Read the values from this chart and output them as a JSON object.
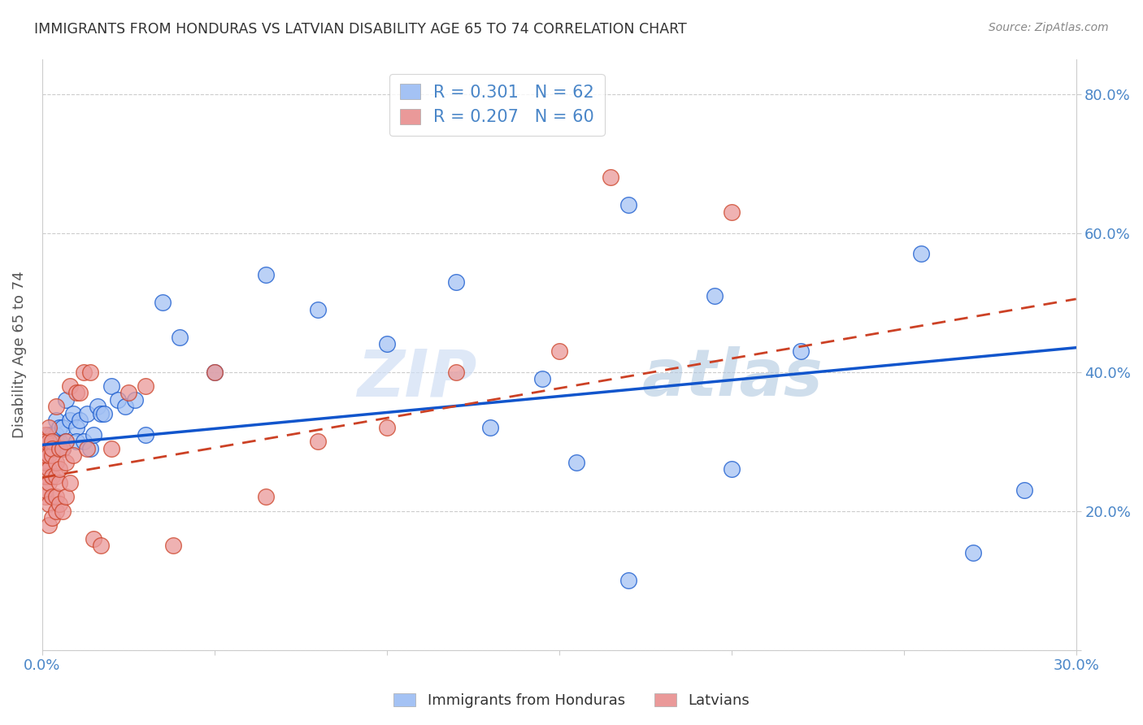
{
  "title": "IMMIGRANTS FROM HONDURAS VS LATVIAN DISABILITY AGE 65 TO 74 CORRELATION CHART",
  "source": "Source: ZipAtlas.com",
  "ylabel": "Disability Age 65 to 74",
  "xlim": [
    0.0,
    0.3
  ],
  "ylim": [
    0.0,
    0.85
  ],
  "xticks": [
    0.0,
    0.05,
    0.1,
    0.15,
    0.2,
    0.25,
    0.3
  ],
  "xtick_labels": [
    "0.0%",
    "",
    "",
    "",
    "",
    "",
    "30.0%"
  ],
  "yticks": [
    0.0,
    0.2,
    0.4,
    0.6,
    0.8
  ],
  "ytick_labels_right": [
    "",
    "20.0%",
    "40.0%",
    "60.0%",
    "80.0%"
  ],
  "legend_label1": "Immigrants from Honduras",
  "legend_label2": "Latvians",
  "r1": 0.301,
  "n1": 62,
  "r2": 0.207,
  "n2": 60,
  "color1": "#a4c2f4",
  "color2": "#ea9999",
  "line_color1": "#1155cc",
  "line_color2": "#cc4125",
  "background_color": "#ffffff",
  "watermark_zip": "ZIP",
  "watermark_atlas": "atlas",
  "scatter1_x": [
    0.0,
    0.001,
    0.001,
    0.001,
    0.001,
    0.001,
    0.001,
    0.002,
    0.002,
    0.002,
    0.002,
    0.002,
    0.002,
    0.003,
    0.003,
    0.003,
    0.003,
    0.004,
    0.004,
    0.004,
    0.005,
    0.005,
    0.005,
    0.006,
    0.006,
    0.007,
    0.007,
    0.008,
    0.009,
    0.01,
    0.01,
    0.011,
    0.012,
    0.013,
    0.014,
    0.015,
    0.016,
    0.017,
    0.018,
    0.02,
    0.022,
    0.024,
    0.027,
    0.03,
    0.035,
    0.04,
    0.05,
    0.065,
    0.08,
    0.1,
    0.12,
    0.145,
    0.17,
    0.195,
    0.13,
    0.155,
    0.255,
    0.27,
    0.285,
    0.2,
    0.22,
    0.17
  ],
  "scatter1_y": [
    0.3,
    0.3,
    0.3,
    0.3,
    0.3,
    0.3,
    0.3,
    0.3,
    0.3,
    0.3,
    0.3,
    0.3,
    0.31,
    0.3,
    0.3,
    0.31,
    0.3,
    0.3,
    0.31,
    0.33,
    0.29,
    0.3,
    0.32,
    0.29,
    0.32,
    0.36,
    0.3,
    0.33,
    0.34,
    0.32,
    0.3,
    0.33,
    0.3,
    0.34,
    0.29,
    0.31,
    0.35,
    0.34,
    0.34,
    0.38,
    0.36,
    0.35,
    0.36,
    0.31,
    0.5,
    0.45,
    0.4,
    0.54,
    0.49,
    0.44,
    0.53,
    0.39,
    0.64,
    0.51,
    0.32,
    0.27,
    0.57,
    0.14,
    0.23,
    0.26,
    0.43,
    0.1
  ],
  "scatter2_x": [
    0.0,
    0.0,
    0.001,
    0.001,
    0.001,
    0.001,
    0.001,
    0.001,
    0.001,
    0.001,
    0.001,
    0.002,
    0.002,
    0.002,
    0.002,
    0.002,
    0.002,
    0.002,
    0.003,
    0.003,
    0.003,
    0.003,
    0.003,
    0.003,
    0.004,
    0.004,
    0.004,
    0.004,
    0.004,
    0.005,
    0.005,
    0.005,
    0.005,
    0.006,
    0.006,
    0.007,
    0.007,
    0.007,
    0.008,
    0.008,
    0.009,
    0.01,
    0.011,
    0.012,
    0.013,
    0.014,
    0.015,
    0.017,
    0.02,
    0.025,
    0.03,
    0.038,
    0.05,
    0.065,
    0.08,
    0.1,
    0.12,
    0.15,
    0.165,
    0.2
  ],
  "scatter2_y": [
    0.25,
    0.27,
    0.22,
    0.23,
    0.25,
    0.27,
    0.28,
    0.3,
    0.31,
    0.28,
    0.3,
    0.18,
    0.21,
    0.24,
    0.26,
    0.28,
    0.3,
    0.32,
    0.19,
    0.22,
    0.25,
    0.28,
    0.3,
    0.29,
    0.2,
    0.22,
    0.25,
    0.27,
    0.35,
    0.21,
    0.24,
    0.26,
    0.29,
    0.2,
    0.29,
    0.22,
    0.27,
    0.3,
    0.24,
    0.38,
    0.28,
    0.37,
    0.37,
    0.4,
    0.29,
    0.4,
    0.16,
    0.15,
    0.29,
    0.37,
    0.38,
    0.15,
    0.4,
    0.22,
    0.3,
    0.32,
    0.4,
    0.43,
    0.68,
    0.63
  ],
  "trendline1_x": [
    0.0,
    0.3
  ],
  "trendline1_y": [
    0.295,
    0.435
  ],
  "trendline2_x": [
    0.0,
    0.3
  ],
  "trendline2_y": [
    0.248,
    0.505
  ]
}
